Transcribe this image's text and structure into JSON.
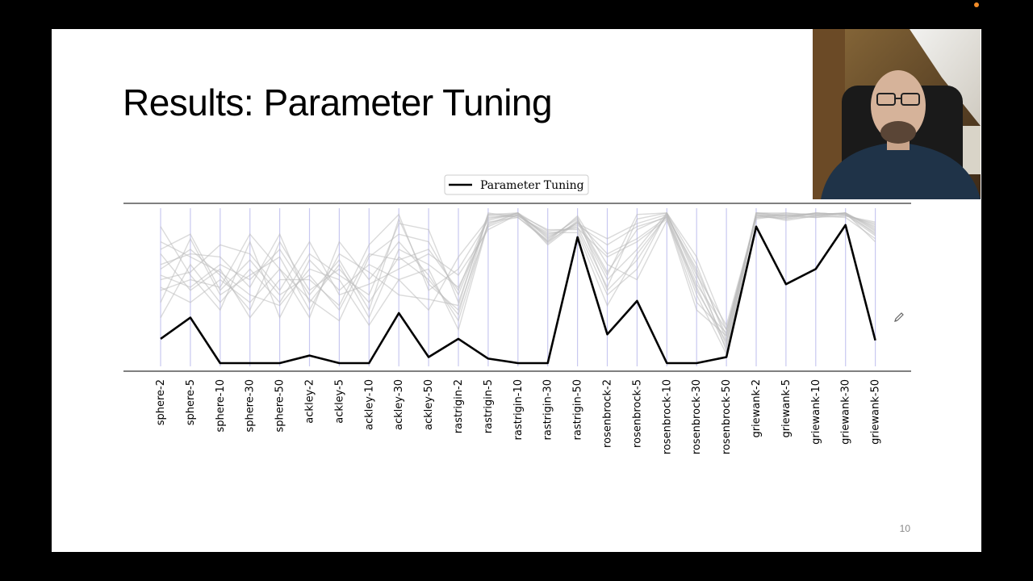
{
  "slide": {
    "title": "Results: Parameter Tuning",
    "page_number": "10"
  },
  "webcam": {
    "icon": "person-video-feed"
  },
  "chart_data": {
    "type": "line",
    "title": "",
    "xlabel": "",
    "ylabel": "",
    "ylim": [
      0,
      1
    ],
    "grid": "vertical axis lines",
    "legend": {
      "placement": "top-center",
      "entries": [
        "Parameter Tuning"
      ]
    },
    "categories": [
      "sphere-2",
      "sphere-5",
      "sphere-10",
      "sphere-30",
      "sphere-50",
      "ackley-2",
      "ackley-5",
      "ackley-10",
      "ackley-30",
      "ackley-50",
      "rastrigin-2",
      "rastrigin-5",
      "rastrigin-10",
      "rastrigin-30",
      "rastrigin-50",
      "rosenbrock-2",
      "rosenbrock-5",
      "rosenbrock-10",
      "rosenbrock-30",
      "rosenbrock-50",
      "griewank-2",
      "griewank-5",
      "griewank-10",
      "griewank-30",
      "griewank-50"
    ],
    "series": [
      {
        "name": "Parameter Tuning",
        "color": "#000000",
        "values": [
          0.16,
          0.3,
          0.0,
          0.0,
          0.0,
          0.05,
          0.0,
          0.0,
          0.33,
          0.04,
          0.16,
          0.03,
          0.0,
          0.0,
          0.83,
          0.19,
          0.41,
          0.0,
          0.0,
          0.04,
          0.9,
          0.52,
          0.62,
          0.91,
          0.15
        ]
      }
    ],
    "background_color": "#bbbbbb",
    "background_series": [
      [
        0.62,
        0.75,
        0.58,
        0.35,
        0.8,
        0.48,
        0.62,
        0.4,
        0.7,
        0.55,
        0.32,
        0.98,
        0.99,
        0.82,
        0.95,
        0.6,
        0.88,
        0.97,
        0.62,
        0.18,
        0.98,
        0.97,
        0.98,
        0.99,
        0.85
      ],
      [
        0.48,
        0.55,
        0.5,
        0.85,
        0.62,
        0.42,
        0.28,
        0.7,
        0.85,
        0.8,
        0.45,
        0.96,
        0.97,
        0.85,
        0.9,
        0.5,
        0.95,
        0.99,
        0.55,
        0.12,
        0.99,
        0.96,
        0.99,
        0.98,
        0.9
      ],
      [
        0.8,
        0.7,
        0.6,
        0.45,
        0.38,
        0.62,
        0.55,
        0.25,
        0.55,
        0.62,
        0.22,
        0.92,
        0.99,
        0.78,
        0.93,
        0.72,
        0.82,
        0.96,
        0.4,
        0.2,
        0.97,
        0.95,
        0.97,
        0.99,
        0.88
      ],
      [
        0.55,
        0.6,
        0.78,
        0.72,
        0.48,
        0.8,
        0.45,
        0.52,
        0.62,
        0.72,
        0.58,
        0.88,
        0.98,
        0.88,
        0.88,
        0.45,
        0.62,
        0.99,
        0.7,
        0.22,
        0.95,
        0.98,
        0.96,
        0.97,
        0.92
      ],
      [
        0.4,
        0.82,
        0.45,
        0.58,
        0.7,
        0.35,
        0.72,
        0.6,
        0.45,
        0.42,
        0.38,
        0.99,
        0.96,
        0.8,
        0.97,
        0.65,
        0.55,
        0.94,
        0.5,
        0.1,
        0.99,
        0.99,
        0.98,
        0.99,
        0.8
      ],
      [
        0.72,
        0.48,
        0.62,
        0.3,
        0.55,
        0.55,
        0.38,
        0.78,
        0.98,
        0.48,
        0.62,
        0.94,
        0.99,
        0.83,
        0.92,
        0.82,
        0.92,
        0.98,
        0.58,
        0.25,
        0.96,
        0.96,
        0.99,
        0.98,
        0.86
      ],
      [
        0.3,
        0.65,
        0.4,
        0.62,
        0.4,
        0.72,
        0.58,
        0.45,
        0.92,
        0.88,
        0.4,
        0.97,
        0.97,
        0.86,
        0.86,
        0.38,
        0.72,
        0.97,
        0.45,
        0.06,
        0.98,
        0.94,
        0.97,
        0.96,
        0.82
      ],
      [
        0.65,
        0.72,
        0.7,
        0.5,
        0.85,
        0.4,
        0.65,
        0.3,
        0.75,
        0.65,
        0.5,
        0.9,
        0.98,
        0.79,
        0.94,
        0.58,
        0.98,
        0.99,
        0.65,
        0.15,
        0.97,
        0.97,
        0.96,
        0.99,
        0.89
      ],
      [
        0.9,
        0.58,
        0.35,
        0.8,
        0.3,
        0.68,
        0.48,
        0.65,
        0.55,
        0.35,
        0.7,
        0.95,
        0.99,
        0.87,
        0.89,
        0.7,
        0.8,
        0.95,
        0.35,
        0.18,
        0.99,
        0.98,
        0.98,
        0.97,
        0.93
      ],
      [
        0.5,
        0.4,
        0.55,
        0.4,
        0.62,
        0.3,
        0.8,
        0.55,
        0.8,
        0.58,
        0.28,
        0.93,
        0.96,
        0.81,
        0.96,
        0.48,
        0.68,
        0.98,
        0.6,
        0.08,
        0.98,
        0.95,
        0.99,
        0.98,
        0.84
      ],
      [
        0.75,
        0.85,
        0.48,
        0.68,
        0.45,
        0.58,
        0.35,
        0.72,
        0.68,
        0.75,
        0.48,
        0.98,
        0.98,
        0.84,
        0.91,
        0.78,
        0.9,
        0.96,
        0.52,
        0.22,
        0.96,
        0.99,
        0.97,
        0.99,
        0.87
      ],
      [
        0.58,
        0.5,
        0.65,
        0.55,
        0.75,
        0.45,
        0.68,
        0.35,
        0.95,
        0.52,
        0.35,
        0.91,
        0.99,
        0.8,
        0.93,
        0.55,
        0.75,
        0.99,
        0.48,
        0.14,
        0.99,
        0.97,
        0.99,
        0.98,
        0.91
      ]
    ]
  }
}
